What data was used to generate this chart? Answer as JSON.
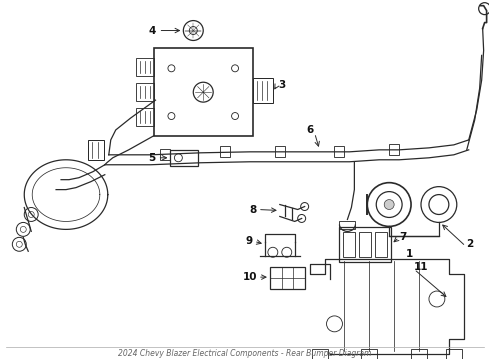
{
  "title": "2024 Chevy Blazer Electrical Components - Rear Bumper Diagram",
  "background_color": "#ffffff",
  "line_color": "#2a2a2a",
  "label_color": "#111111",
  "fig_width": 4.9,
  "fig_height": 3.6,
  "dpi": 100
}
